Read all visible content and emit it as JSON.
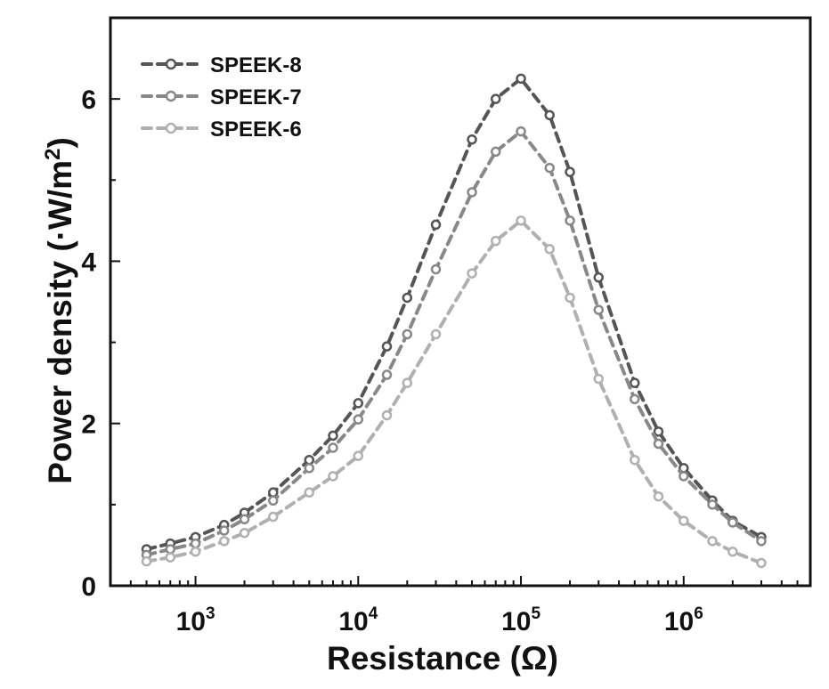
{
  "chart_data": {
    "type": "line",
    "xlabel": "Resistance (Ω)",
    "ylabel": "Power density (·W/m²)",
    "ylabel_parts": {
      "main": "Power density (·W/m",
      "sup": "2",
      "close": ")"
    },
    "xscale": "log",
    "xlim": [
      300,
      6000000
    ],
    "ylim": [
      0,
      7
    ],
    "grid": false,
    "legend_position": "top-left",
    "x_ticks": [
      {
        "value": 1000,
        "base": "10",
        "exp": "3"
      },
      {
        "value": 10000,
        "base": "10",
        "exp": "4"
      },
      {
        "value": 100000,
        "base": "10",
        "exp": "5"
      },
      {
        "value": 1000000,
        "base": "10",
        "exp": "6"
      }
    ],
    "y_ticks": [
      "0",
      "2",
      "4",
      "6"
    ],
    "x": [
      500,
      700,
      1000,
      1500,
      2000,
      3000,
      5000,
      7000,
      10000,
      15000,
      20000,
      30000,
      50000,
      70000,
      100000,
      150000,
      200000,
      300000,
      500000,
      700000,
      1000000,
      1500000,
      2000000,
      3000000
    ],
    "series": [
      {
        "name": "SPEEK-8",
        "color": "#555555",
        "values": [
          0.45,
          0.52,
          0.6,
          0.75,
          0.9,
          1.15,
          1.55,
          1.85,
          2.25,
          2.95,
          3.55,
          4.45,
          5.5,
          6.0,
          6.25,
          5.8,
          5.1,
          3.8,
          2.5,
          1.9,
          1.45,
          1.05,
          0.8,
          0.6
        ]
      },
      {
        "name": "SPEEK-7",
        "color": "#888888",
        "values": [
          0.38,
          0.45,
          0.52,
          0.68,
          0.82,
          1.05,
          1.45,
          1.7,
          2.05,
          2.6,
          3.1,
          3.9,
          4.85,
          5.35,
          5.6,
          5.15,
          4.5,
          3.4,
          2.3,
          1.75,
          1.35,
          1.0,
          0.78,
          0.55
        ]
      },
      {
        "name": "SPEEK-6",
        "color": "#b0b0b0",
        "values": [
          0.3,
          0.35,
          0.42,
          0.55,
          0.65,
          0.85,
          1.15,
          1.35,
          1.6,
          2.1,
          2.5,
          3.1,
          3.85,
          4.25,
          4.5,
          4.15,
          3.55,
          2.55,
          1.55,
          1.1,
          0.8,
          0.55,
          0.42,
          0.28
        ]
      }
    ]
  }
}
